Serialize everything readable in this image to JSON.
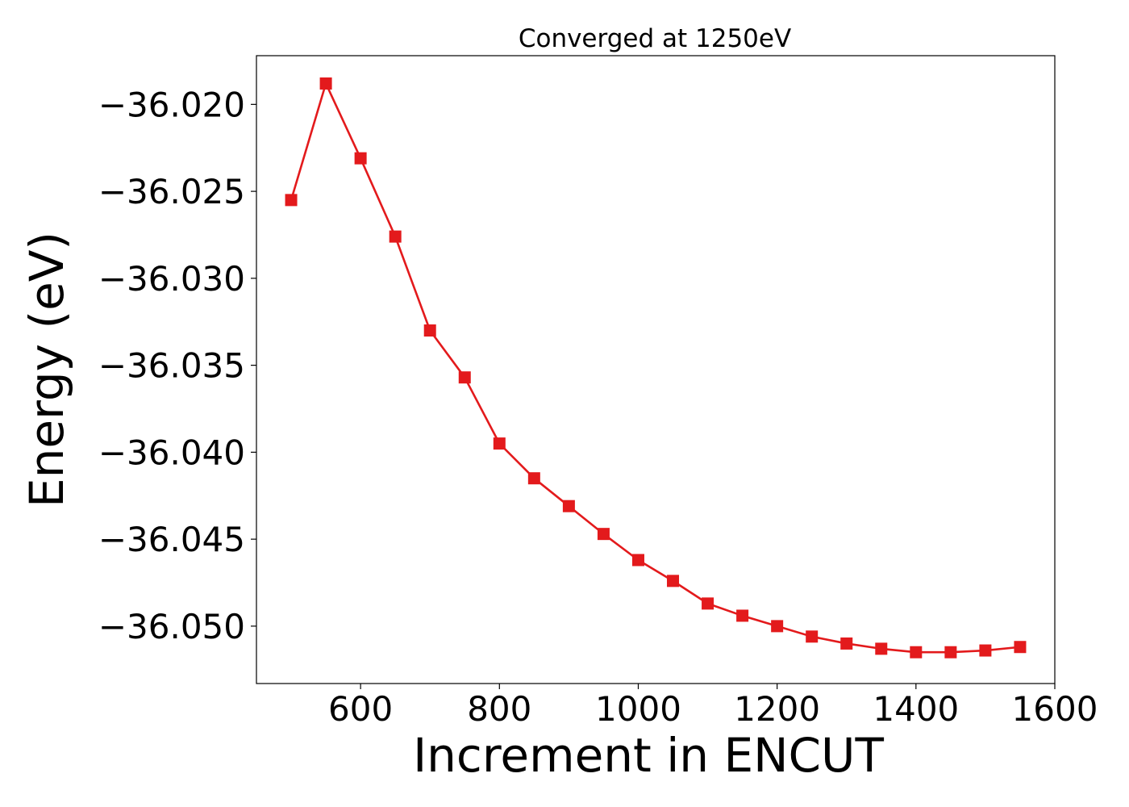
{
  "chart_data": {
    "type": "line",
    "title": "Converged at 1250eV",
    "xlabel": "Increment in ENCUT",
    "ylabel": "Energy (eV)",
    "xlim": [
      450,
      1600
    ],
    "ylim": [
      -36.0533,
      -36.0172
    ],
    "xticks": [
      600,
      800,
      1000,
      1200,
      1400,
      1600
    ],
    "xtick_labels": [
      "600",
      "800",
      "1000",
      "1200",
      "1400",
      "1600"
    ],
    "yticks": [
      -36.02,
      -36.025,
      -36.03,
      -36.035,
      -36.04,
      -36.045,
      -36.05
    ],
    "ytick_labels": [
      "−36.020",
      "−36.025",
      "−36.030",
      "−36.035",
      "−36.040",
      "−36.045",
      "−36.050"
    ],
    "grid": false,
    "marker": "square",
    "series": [
      {
        "color": "#e31a1c",
        "x": [
          500,
          550,
          600,
          650,
          700,
          750,
          800,
          850,
          900,
          950,
          1000,
          1050,
          1100,
          1150,
          1200,
          1250,
          1300,
          1350,
          1400,
          1450,
          1500,
          1550
        ],
        "y": [
          -36.0255,
          -36.0188,
          -36.0231,
          -36.0276,
          -36.033,
          -36.0357,
          -36.0395,
          -36.0415,
          -36.0431,
          -36.0447,
          -36.0462,
          -36.0474,
          -36.0487,
          -36.0494,
          -36.05,
          -36.0506,
          -36.051,
          -36.0513,
          -36.0515,
          -36.0515,
          -36.0514,
          -36.0512
        ]
      }
    ]
  }
}
